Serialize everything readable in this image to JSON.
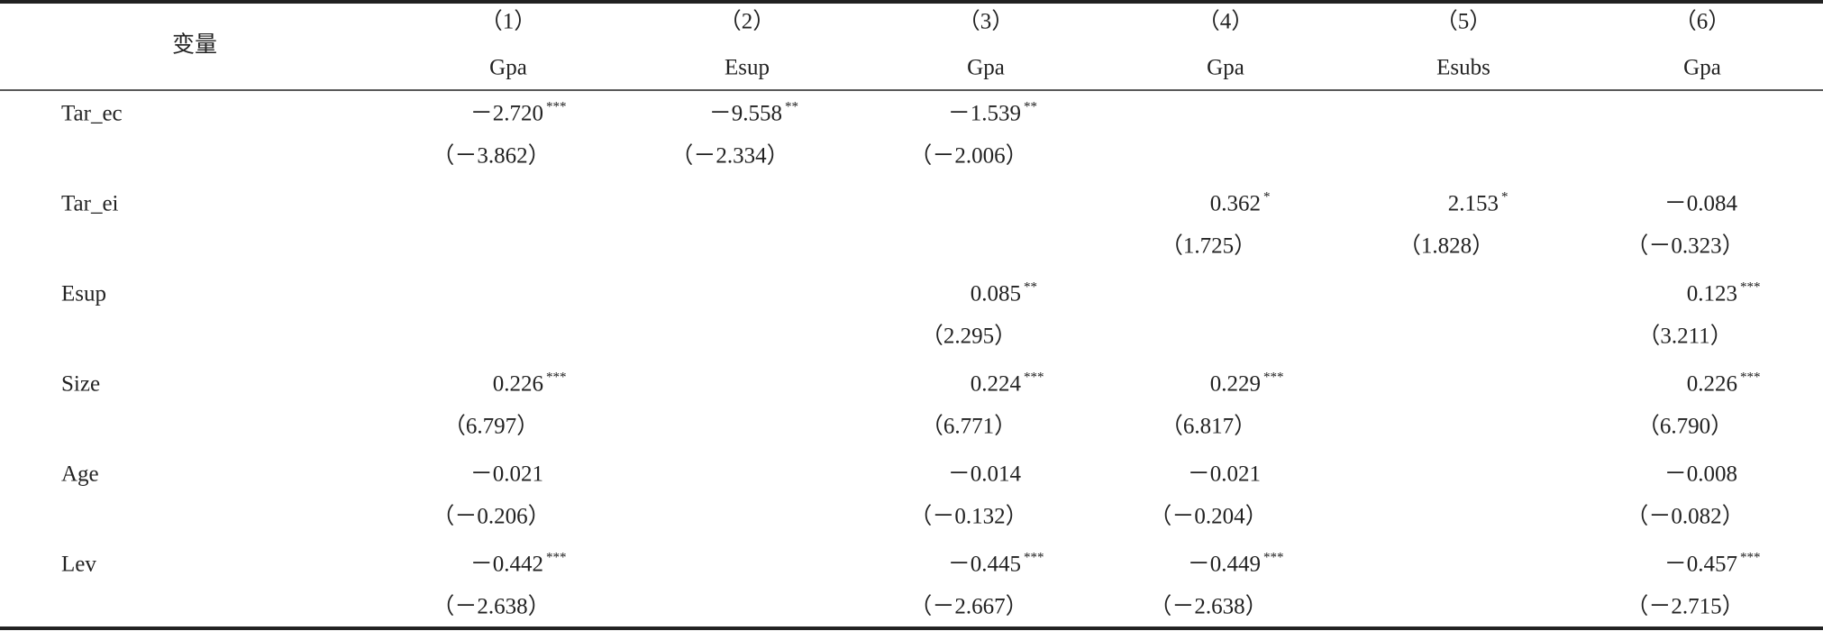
{
  "table": {
    "header": {
      "variable": "变量",
      "numbers": [
        "（1）",
        "（2）",
        "（3）",
        "（4）",
        "（5）",
        "（6）"
      ],
      "dependents": [
        "Gpa",
        "Esup",
        "Gpa",
        "Gpa",
        "Esubs",
        "Gpa"
      ]
    },
    "rows": [
      {
        "name": "Tar_ec",
        "coefs": [
          {
            "value": "－2.720",
            "stars": "***"
          },
          {
            "value": "－9.558",
            "stars": "**"
          },
          {
            "value": "－1.539",
            "stars": "**"
          },
          null,
          null,
          null
        ],
        "tstats": [
          "（－3.862）",
          "（－2.334）",
          "（－2.006）",
          null,
          null,
          null
        ]
      },
      {
        "name": "Tar_ei",
        "coefs": [
          null,
          null,
          null,
          {
            "value": "0.362",
            "stars": "*"
          },
          {
            "value": "2.153",
            "stars": "*"
          },
          {
            "value": "－0.084"
          }
        ],
        "tstats": [
          null,
          null,
          null,
          "（1.725）",
          "（1.828）",
          "（－0.323）"
        ]
      },
      {
        "name": "Esup",
        "coefs": [
          null,
          null,
          {
            "value": "0.085",
            "stars": "**"
          },
          null,
          null,
          {
            "value": "0.123",
            "stars": "***"
          }
        ],
        "tstats": [
          null,
          null,
          "（2.295）",
          null,
          null,
          "（3.211）"
        ]
      },
      {
        "name": "Size",
        "coefs": [
          {
            "value": "0.226",
            "stars": "***"
          },
          null,
          {
            "value": "0.224",
            "stars": "***"
          },
          {
            "value": "0.229",
            "stars": "***"
          },
          null,
          {
            "value": "0.226",
            "stars": "***"
          }
        ],
        "tstats": [
          "（6.797）",
          null,
          "（6.771）",
          "（6.817）",
          null,
          "（6.790）"
        ]
      },
      {
        "name": "Age",
        "coefs": [
          {
            "value": "－0.021"
          },
          null,
          {
            "value": "－0.014"
          },
          {
            "value": "－0.021"
          },
          null,
          {
            "value": "－0.008"
          }
        ],
        "tstats": [
          "（－0.206）",
          null,
          "（－0.132）",
          "（－0.204）",
          null,
          "（－0.082）"
        ]
      },
      {
        "name": "Lev",
        "coefs": [
          {
            "value": "－0.442",
            "stars": "***"
          },
          null,
          {
            "value": "－0.445",
            "stars": "***"
          },
          {
            "value": "－0.449",
            "stars": "***"
          },
          null,
          {
            "value": "－0.457",
            "stars": "***"
          }
        ],
        "tstats": [
          "（－2.638）",
          null,
          "（－2.667）",
          "（－2.638）",
          null,
          "（－2.715）"
        ]
      }
    ]
  }
}
